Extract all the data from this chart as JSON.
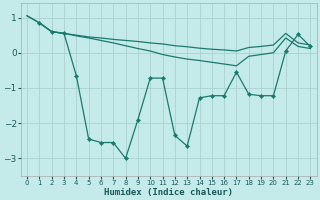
{
  "xlabel": "Humidex (Indice chaleur)",
  "bg_color": "#c5eaea",
  "grid_color": "#aed4d4",
  "line_color": "#1a7a6e",
  "xlim": [
    -0.5,
    23.5
  ],
  "ylim": [
    -3.5,
    1.4
  ],
  "yticks": [
    -3,
    -2,
    -1,
    0,
    1
  ],
  "xticks": [
    0,
    1,
    2,
    3,
    4,
    5,
    6,
    7,
    8,
    9,
    10,
    11,
    12,
    13,
    14,
    15,
    16,
    17,
    18,
    19,
    20,
    21,
    22,
    23
  ],
  "line1_x": [
    0,
    1,
    2,
    3,
    4,
    5,
    6,
    7,
    8,
    9,
    10,
    11,
    12,
    13,
    14,
    15,
    16,
    17,
    18,
    19,
    20,
    21,
    22,
    23
  ],
  "line1_y": [
    1.05,
    0.85,
    0.6,
    0.55,
    0.5,
    0.45,
    0.42,
    0.38,
    0.35,
    0.32,
    0.28,
    0.25,
    0.2,
    0.17,
    0.13,
    0.1,
    0.08,
    0.05,
    0.15,
    0.18,
    0.22,
    0.55,
    0.28,
    0.22
  ],
  "line2_x": [
    0,
    1,
    2,
    3,
    4,
    5,
    6,
    7,
    8,
    9,
    10,
    11,
    12,
    13,
    14,
    15,
    16,
    17,
    18,
    19,
    20,
    21,
    22,
    23
  ],
  "line2_y": [
    1.05,
    0.85,
    0.6,
    0.55,
    0.48,
    0.42,
    0.35,
    0.28,
    0.2,
    0.12,
    0.05,
    -0.05,
    -0.12,
    -0.18,
    -0.22,
    -0.27,
    -0.32,
    -0.37,
    -0.1,
    -0.05,
    0.0,
    0.42,
    0.18,
    0.12
  ],
  "line3_x": [
    1,
    2,
    3,
    4,
    5,
    6,
    7,
    8,
    9,
    10,
    11,
    12,
    13,
    14,
    15,
    16,
    17,
    18,
    19,
    20,
    21,
    22,
    23
  ],
  "line3_y": [
    0.85,
    0.6,
    0.55,
    -0.65,
    -2.45,
    -2.55,
    -2.55,
    -3.0,
    -1.9,
    -0.72,
    -0.72,
    -2.35,
    -2.65,
    -1.28,
    -1.22,
    -1.22,
    -0.55,
    -1.18,
    -1.22,
    -1.22,
    0.05,
    0.52,
    0.18
  ]
}
